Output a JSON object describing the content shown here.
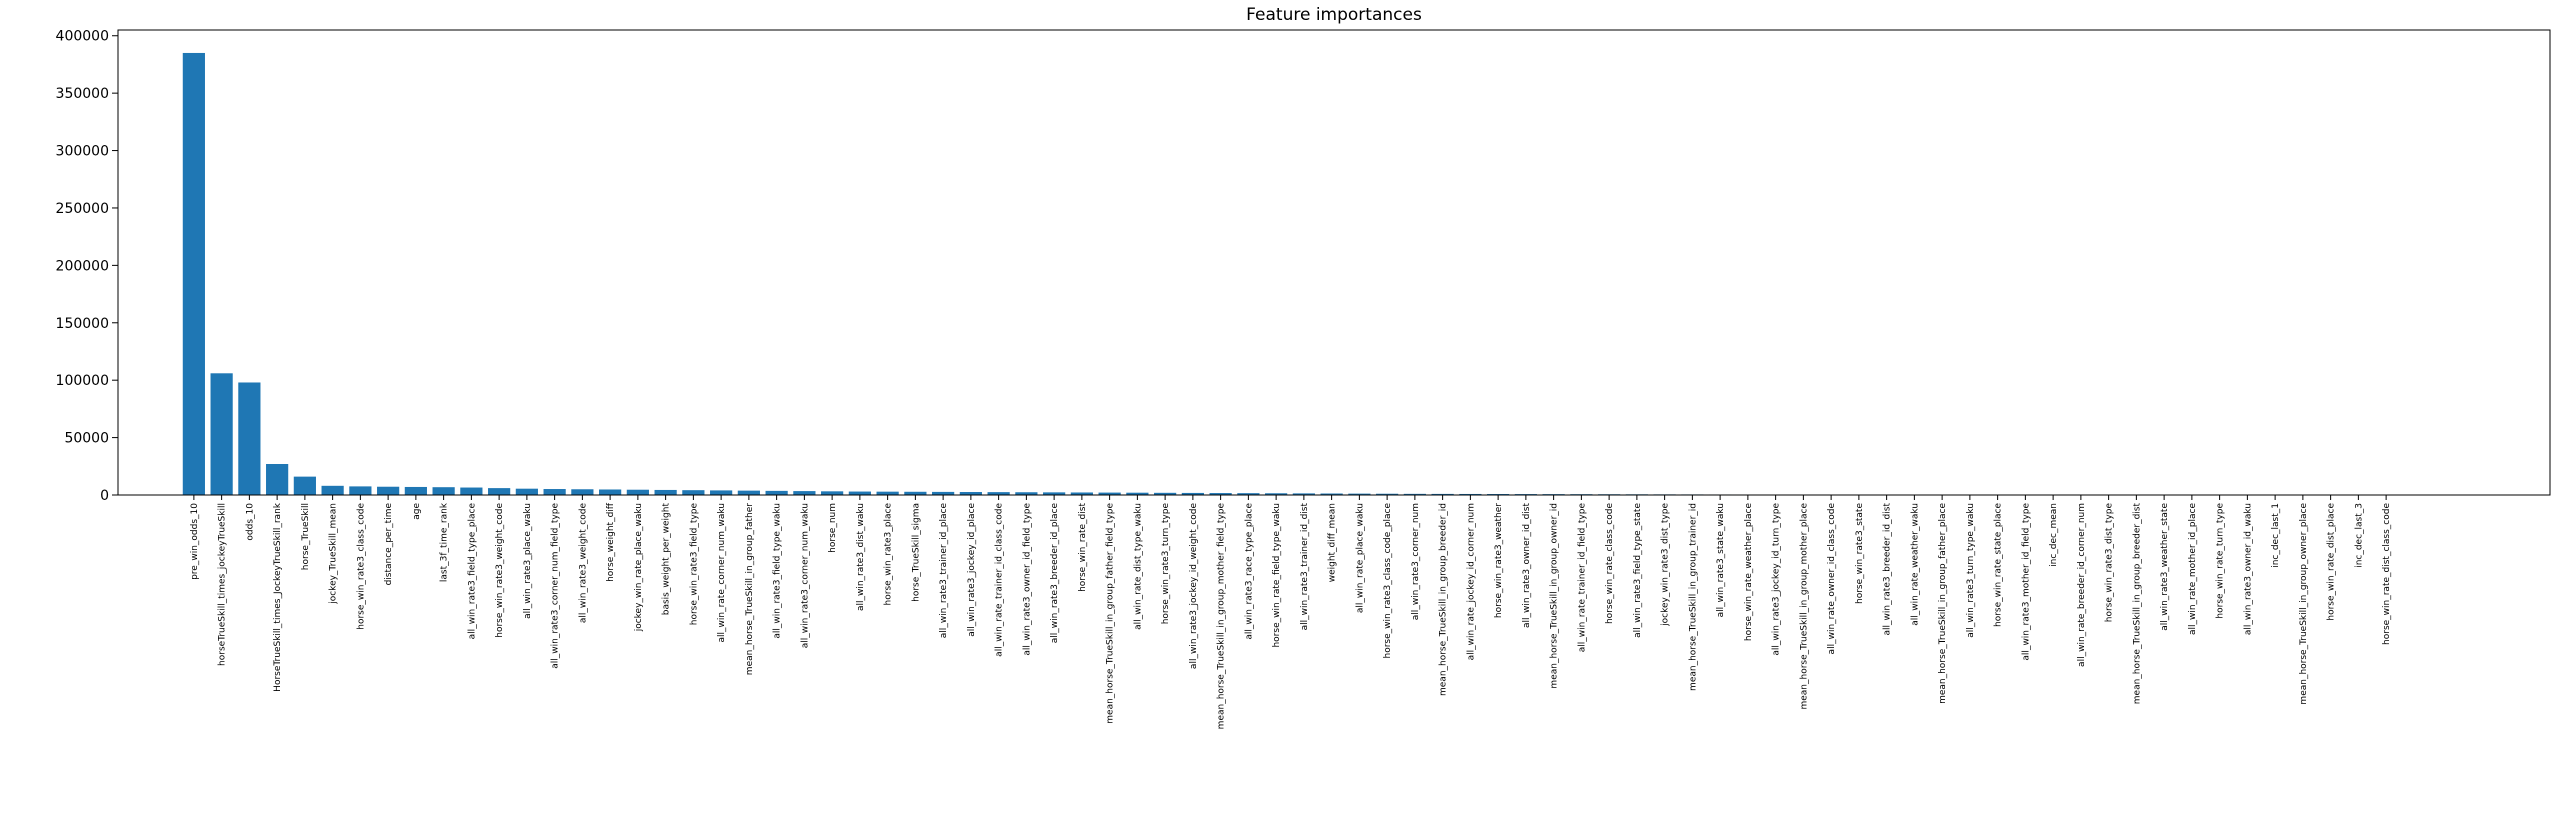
{
  "chart_data": {
    "type": "bar",
    "title": "Feature importances",
    "color": "#1f77b4",
    "categories": [
      "pre_win_odds_10",
      "horseTrueSkill_times_jockeyTrueSkill",
      "odds_10",
      "HorseTrueSkill_times_JockeyTrueSkill_rank",
      "horse_TrueSkill",
      "jockey_TrueSkill_mean",
      "horse_win_rate3_class_code",
      "distance_per_time",
      "age",
      "last_3f_time_rank",
      "all_win_rate3_field_type_place",
      "horse_win_rate3_weight_code",
      "all_win_rate3_place_waku",
      "all_win_rate3_corner_num_field_type",
      "all_win_rate3_weight_code",
      "horse_weight_diff",
      "jockey_win_rate_place_waku",
      "basis_weight_per_weight",
      "horse_win_rate3_field_type",
      "all_win_rate_corner_num_waku",
      "mean_horse_TrueSkill_in_group_father",
      "all_win_rate3_field_type_waku",
      "all_win_rate3_corner_num_waku",
      "horse_num",
      "all_win_rate3_dist_waku",
      "horse_win_rate3_place",
      "horse_TrueSkill_sigma",
      "all_win_rate3_trainer_id_place",
      "all_win_rate3_jockey_id_place",
      "all_win_rate_trainer_id_class_code",
      "all_win_rate3_owner_id_field_type",
      "all_win_rate3_breeder_id_place",
      "horse_win_rate_dist",
      "mean_horse_TrueSkill_in_group_father_field_type",
      "all_win_rate_dist_type_waku",
      "horse_win_rate3_turn_type",
      "all_win_rate3_jockey_id_weight_code",
      "mean_horse_TrueSkill_in_group_mother_field_type",
      "all_win_rate3_race_type_place",
      "horse_win_rate_field_type_waku",
      "all_win_rate3_trainer_id_dist",
      "weight_diff_mean",
      "all_win_rate_place_waku",
      "horse_win_rate3_class_code_place",
      "all_win_rate3_corner_num",
      "mean_horse_TrueSkill_in_group_breeder_id",
      "all_win_rate_jockey_id_corner_num",
      "horse_win_rate3_weather",
      "all_win_rate3_owner_id_dist",
      "mean_horse_TrueSkill_in_group_owner_id",
      "all_win_rate_trainer_id_field_type",
      "horse_win_rate_class_code",
      "all_win_rate3_field_type_state",
      "jockey_win_rate3_dist_type",
      "mean_horse_TrueSkill_in_group_trainer_id",
      "all_win_rate3_state_waku",
      "horse_win_rate_weather_place",
      "all_win_rate3_jockey_id_turn_type",
      "mean_horse_TrueSkill_in_group_mother_place",
      "all_win_rate_owner_id_class_code",
      "horse_win_rate3_state",
      "all_win_rate3_breeder_id_dist",
      "all_win_rate_weather_waku",
      "mean_horse_TrueSkill_in_group_father_place",
      "all_win_rate3_turn_type_waku",
      "horse_win_rate_state_place",
      "all_win_rate3_mother_id_field_type",
      "inc_dec_mean",
      "all_win_rate_breeder_id_corner_num",
      "horse_win_rate3_dist_type",
      "mean_horse_TrueSkill_in_group_breeder_dist",
      "all_win_rate3_weather_state",
      "all_win_rate_mother_id_place",
      "horse_win_rate_turn_type",
      "all_win_rate3_owner_id_waku",
      "inc_dec_last_1",
      "mean_horse_TrueSkill_in_group_owner_place",
      "horse_win_rate_dist_place",
      "inc_dec_last_3",
      "horse_win_rate_dist_class_code"
    ],
    "values": [
      385000,
      106000,
      98000,
      27000,
      16000,
      8000,
      7500,
      7200,
      7000,
      6800,
      6500,
      6000,
      5500,
      5200,
      5000,
      4800,
      4600,
      4400,
      4200,
      4000,
      3800,
      3600,
      3400,
      3200,
      3000,
      2900,
      2800,
      2700,
      2600,
      2500,
      2400,
      2300,
      2200,
      2100,
      2000,
      1900,
      1800,
      1700,
      1600,
      1500,
      1400,
      1300,
      1200,
      1100,
      1000,
      950,
      900,
      850,
      800,
      750,
      700,
      650,
      600,
      550,
      500,
      450,
      400,
      350,
      300,
      270,
      240,
      210,
      180,
      150,
      130,
      110,
      90,
      75,
      60,
      50,
      40,
      30,
      25,
      20,
      15,
      10,
      8,
      5,
      3,
      1
    ],
    "ylim": [
      0,
      405000
    ],
    "yticks": [
      0,
      50000,
      100000,
      150000,
      200000,
      250000,
      300000,
      350000,
      400000
    ]
  }
}
